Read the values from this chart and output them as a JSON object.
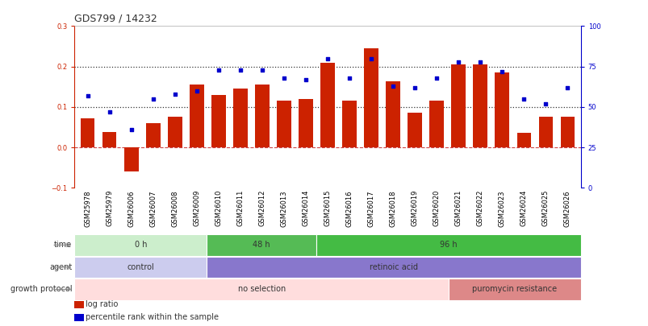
{
  "title": "GDS799 / 14232",
  "samples": [
    "GSM25978",
    "GSM25979",
    "GSM26006",
    "GSM26007",
    "GSM26008",
    "GSM26009",
    "GSM26010",
    "GSM26011",
    "GSM26012",
    "GSM26013",
    "GSM26014",
    "GSM26015",
    "GSM26016",
    "GSM26017",
    "GSM26018",
    "GSM26019",
    "GSM26020",
    "GSM26021",
    "GSM26022",
    "GSM26023",
    "GSM26024",
    "GSM26025",
    "GSM26026"
  ],
  "log_ratio": [
    0.072,
    0.038,
    -0.06,
    0.06,
    0.075,
    0.155,
    0.13,
    0.145,
    0.155,
    0.115,
    0.12,
    0.21,
    0.115,
    0.245,
    0.163,
    0.085,
    0.115,
    0.205,
    0.205,
    0.185,
    0.035,
    0.075,
    0.075
  ],
  "percentile": [
    57,
    47,
    36,
    55,
    58,
    60,
    73,
    73,
    73,
    68,
    67,
    80,
    68,
    80,
    63,
    62,
    68,
    78,
    78,
    72,
    55,
    52,
    62
  ],
  "ylim_left": [
    -0.1,
    0.3
  ],
  "ylim_right": [
    0,
    100
  ],
  "bar_color": "#cc2200",
  "dot_color": "#0000cc",
  "zero_line_color": "#cc4444",
  "dotted_line_color": "#333333",
  "dotted_vals": [
    0.1,
    0.2
  ],
  "time_groups": [
    {
      "label": "0 h",
      "start": 0,
      "end": 6,
      "color": "#cceecc"
    },
    {
      "label": "48 h",
      "start": 6,
      "end": 11,
      "color": "#55bb55"
    },
    {
      "label": "96 h",
      "start": 11,
      "end": 23,
      "color": "#44bb44"
    }
  ],
  "agent_groups": [
    {
      "label": "control",
      "start": 0,
      "end": 6,
      "color": "#ccccee"
    },
    {
      "label": "retinoic acid",
      "start": 6,
      "end": 23,
      "color": "#8877cc"
    }
  ],
  "growth_groups": [
    {
      "label": "no selection",
      "start": 0,
      "end": 17,
      "color": "#ffdddd"
    },
    {
      "label": "puromycin resistance",
      "start": 17,
      "end": 23,
      "color": "#dd8888"
    }
  ],
  "row_labels": [
    "time",
    "agent",
    "growth protocol"
  ],
  "legend_items": [
    {
      "label": "log ratio",
      "color": "#cc2200"
    },
    {
      "label": "percentile rank within the sample",
      "color": "#0000cc"
    }
  ],
  "background_color": "#ffffff",
  "axis_color_left": "#cc2200",
  "axis_color_right": "#0000cc",
  "title_fontsize": 9,
  "tick_fontsize": 6,
  "annot_fontsize": 7,
  "legend_fontsize": 7
}
